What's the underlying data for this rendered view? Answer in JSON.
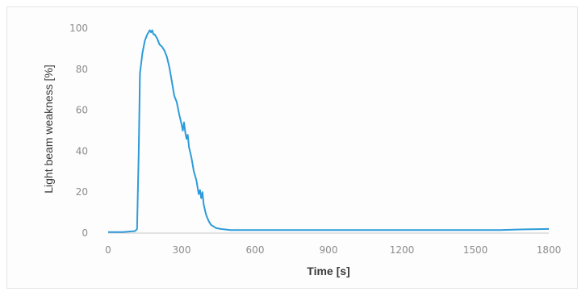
{
  "chart_data": {
    "type": "line",
    "title": "",
    "xlabel": "Time [s]",
    "ylabel": "Light beam weakness [%]",
    "xlim": [
      0,
      1800
    ],
    "ylim": [
      0,
      100
    ],
    "xticks": [
      "0",
      "300",
      "600",
      "900",
      "1200",
      "1500",
      "1800"
    ],
    "yticks": [
      "0",
      "20",
      "40",
      "60",
      "80",
      "100"
    ],
    "grid": false,
    "legend": "none",
    "series": [
      {
        "color": "#2e9bd9",
        "x": [
          0,
          60,
          110,
          118,
          125,
          130,
          140,
          150,
          160,
          170,
          175,
          180,
          185,
          190,
          200,
          210,
          220,
          230,
          240,
          250,
          260,
          270,
          280,
          290,
          300,
          305,
          310,
          315,
          320,
          325,
          330,
          340,
          350,
          360,
          370,
          375,
          380,
          385,
          390,
          400,
          410,
          420,
          440,
          460,
          500,
          600,
          700,
          800,
          900,
          1000,
          1100,
          1200,
          1300,
          1400,
          1500,
          1600,
          1700,
          1800
        ],
        "y": [
          0.5,
          0.5,
          1,
          2,
          40,
          78,
          88,
          94,
          97,
          99,
          98,
          99,
          97,
          97,
          95,
          92,
          91,
          89,
          86,
          81,
          74,
          67,
          64,
          58,
          53,
          50,
          54,
          49,
          46,
          48,
          42,
          37,
          30,
          26,
          19,
          21,
          17,
          20,
          14,
          9,
          6,
          4,
          2.5,
          2,
          1.5,
          1.5,
          1.5,
          1.5,
          1.5,
          1.5,
          1.5,
          1.5,
          1.5,
          1.5,
          1.5,
          1.5,
          1.8,
          2
        ]
      }
    ]
  }
}
